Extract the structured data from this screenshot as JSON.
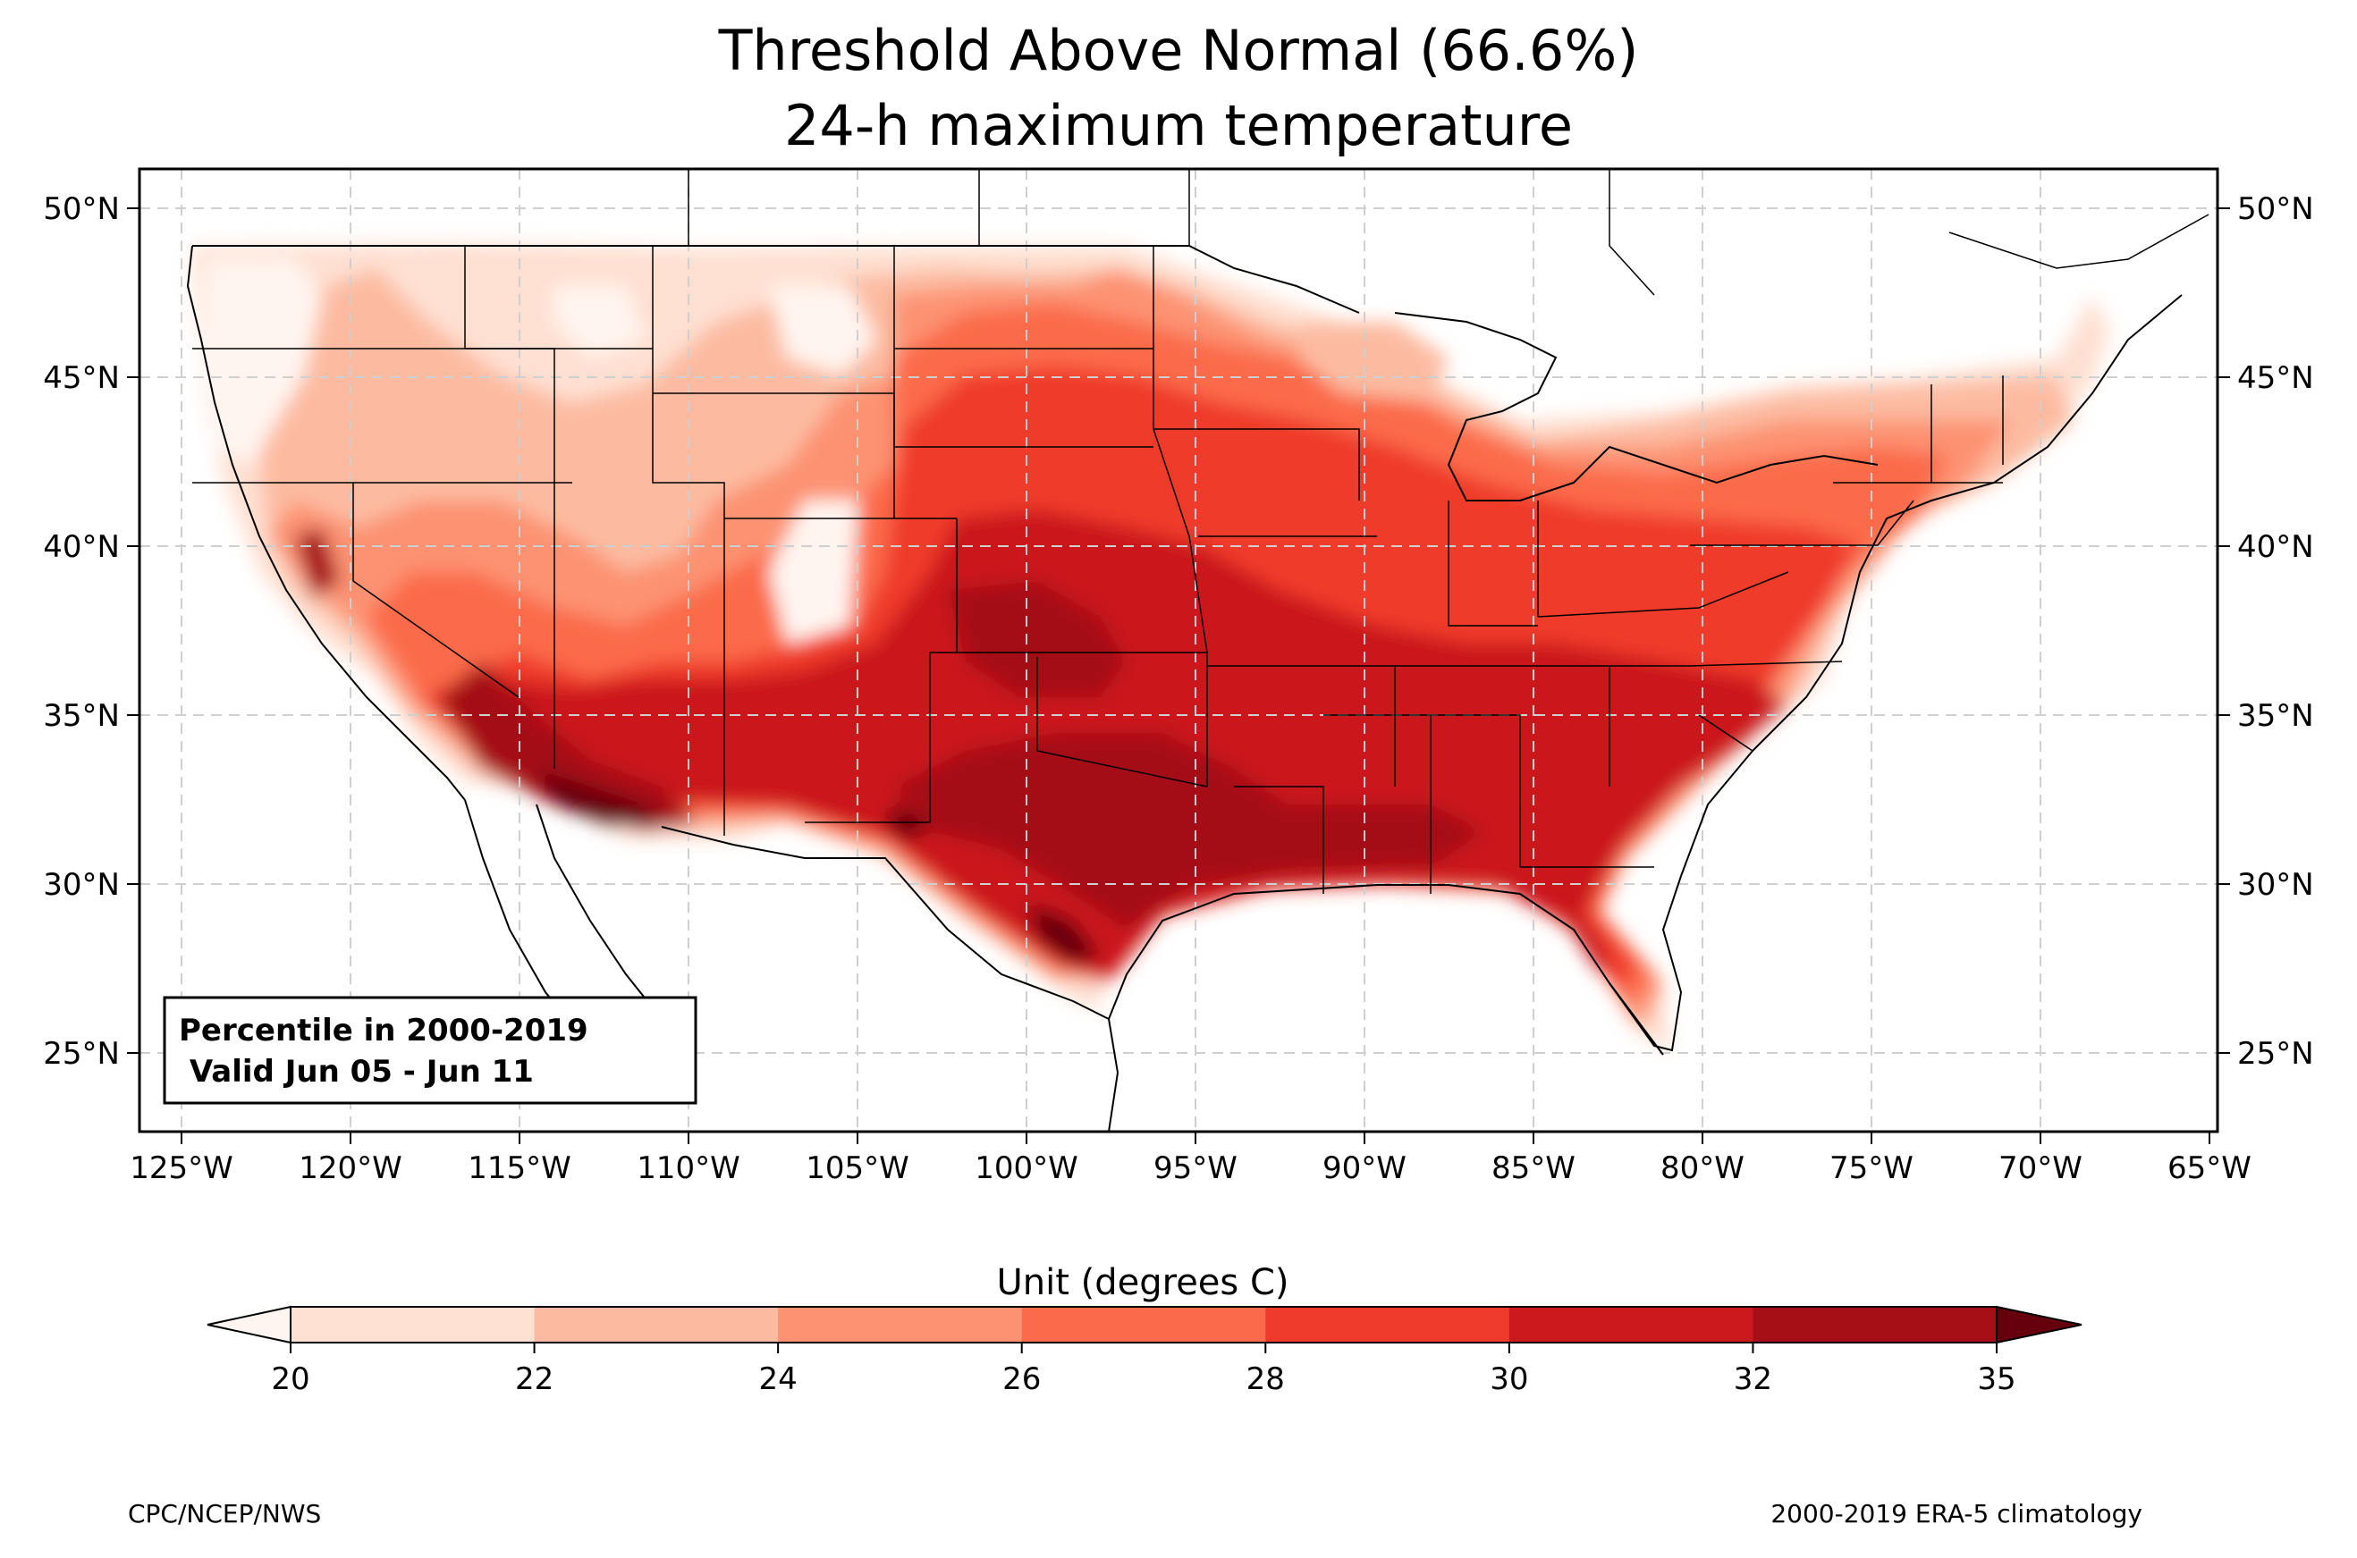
{
  "title": {
    "line1": "Threshold Above Normal (66.6%)",
    "line2": "24-h maximum temperature"
  },
  "axes": {
    "lon_ticks": [
      "125°W",
      "120°W",
      "115°W",
      "110°W",
      "105°W",
      "100°W",
      "95°W",
      "90°W",
      "85°W",
      "80°W",
      "75°W",
      "70°W",
      "65°W"
    ],
    "lat_ticks": [
      "50°N",
      "45°N",
      "40°N",
      "35°N",
      "30°N",
      "25°N"
    ],
    "lon_range": [
      -126.2,
      -64.8
    ],
    "lat_range": [
      22.7,
      51.2
    ],
    "grid": "dashed"
  },
  "infobox": {
    "line1": "Percentile in 2000-2019",
    "line2": " Valid Jun 05 - Jun 11"
  },
  "colorbar": {
    "title": "Unit (degrees C)",
    "ticks": [
      "20",
      "22",
      "24",
      "26",
      "28",
      "30",
      "32",
      "35"
    ],
    "colors": [
      "#fee0d2",
      "#fcbba1",
      "#fc9272",
      "#fb6a4a",
      "#ef3b2c",
      "#cb181d",
      "#a50f15"
    ],
    "under_color": "#fff5f0",
    "over_color": "#67000d"
  },
  "footer": {
    "left": "CPC/NCEP/NWS",
    "right": "2000-2019 ERA-5 climatology"
  }
}
